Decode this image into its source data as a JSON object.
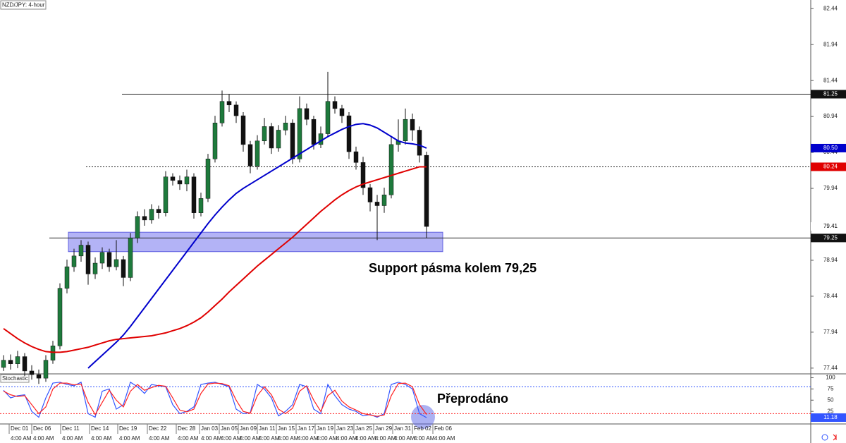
{
  "chart_data": [
    {
      "type": "candlestick",
      "title": "NZD/JPY: 4-hour",
      "open": [
        77.45,
        77.55,
        77.5,
        77.6,
        77.4,
        77.35,
        77.3,
        77.55,
        77.75,
        78.55,
        78.85,
        79.0,
        79.15,
        78.75,
        78.9,
        79.05,
        78.85,
        78.95,
        78.7,
        79.25,
        79.55,
        79.5,
        79.65,
        79.6,
        80.1,
        80.05,
        80.0,
        80.1,
        79.6,
        79.8,
        80.35,
        80.85,
        81.15,
        81.1,
        80.95,
        80.55,
        80.25,
        80.6,
        80.8,
        80.5,
        80.75,
        80.85,
        80.35,
        81.05,
        80.9,
        80.55,
        80.7,
        81.15,
        81.05,
        80.95,
        80.45,
        80.3,
        79.95,
        79.75,
        79.7,
        79.85,
        80.55,
        80.6,
        80.9,
        80.75,
        80.4
      ],
      "high": [
        77.62,
        77.63,
        77.68,
        77.65,
        77.48,
        77.42,
        77.62,
        77.82,
        78.62,
        78.95,
        79.1,
        79.22,
        79.2,
        78.98,
        79.12,
        79.1,
        79.22,
        79.0,
        79.32,
        79.62,
        79.65,
        79.72,
        79.7,
        80.18,
        80.15,
        80.12,
        80.2,
        80.15,
        79.88,
        80.42,
        80.95,
        81.3,
        81.25,
        81.15,
        81.0,
        80.6,
        80.68,
        80.92,
        80.85,
        80.82,
        80.95,
        80.9,
        81.22,
        81.12,
        80.95,
        80.8,
        81.56,
        81.22,
        81.1,
        81.0,
        80.52,
        80.38,
        80.0,
        79.85,
        79.95,
        80.65,
        80.9,
        81.05,
        80.98,
        80.8,
        80.45
      ],
      "low": [
        77.4,
        77.42,
        77.44,
        77.33,
        77.28,
        77.22,
        77.25,
        77.5,
        77.7,
        78.48,
        78.78,
        78.92,
        78.6,
        78.68,
        78.82,
        78.78,
        78.8,
        78.58,
        78.65,
        79.18,
        79.42,
        79.45,
        79.52,
        79.55,
        79.98,
        79.92,
        79.9,
        79.52,
        79.55,
        79.75,
        80.3,
        80.8,
        81.0,
        80.85,
        80.45,
        80.15,
        80.2,
        80.55,
        80.42,
        80.45,
        80.68,
        80.28,
        80.3,
        80.82,
        80.48,
        80.5,
        80.65,
        80.98,
        80.85,
        80.35,
        80.2,
        79.85,
        79.62,
        79.22,
        79.6,
        79.8,
        80.45,
        80.55,
        80.6,
        80.3,
        79.25
      ],
      "close": [
        77.55,
        77.5,
        77.6,
        77.4,
        77.35,
        77.3,
        77.55,
        77.75,
        78.55,
        78.85,
        79.0,
        79.15,
        78.75,
        78.9,
        79.05,
        78.85,
        78.95,
        78.7,
        79.25,
        79.55,
        79.5,
        79.65,
        79.6,
        80.1,
        80.05,
        80.0,
        80.1,
        79.6,
        79.8,
        80.35,
        80.85,
        81.15,
        81.1,
        80.95,
        80.55,
        80.25,
        80.6,
        80.8,
        80.5,
        80.75,
        80.85,
        80.35,
        81.05,
        80.9,
        80.55,
        80.7,
        81.15,
        81.05,
        80.95,
        80.45,
        80.3,
        79.95,
        79.75,
        79.7,
        79.85,
        80.55,
        80.6,
        80.9,
        80.75,
        80.4,
        79.41
      ],
      "up_color": "#1e7a3c",
      "down_color": "#111111",
      "series": [
        {
          "color": "#0000cc",
          "last_value_label": "80.50",
          "values": [
            null,
            null,
            null,
            null,
            null,
            null,
            null,
            null,
            null,
            null,
            null,
            null,
            77.44,
            77.53,
            77.62,
            77.71,
            77.8,
            77.9,
            78.02,
            78.15,
            78.28,
            78.41,
            78.54,
            78.67,
            78.8,
            78.93,
            79.06,
            79.19,
            79.32,
            79.45,
            79.57,
            79.68,
            79.78,
            79.87,
            79.94,
            80.0,
            80.06,
            80.12,
            80.18,
            80.24,
            80.3,
            80.36,
            80.42,
            80.48,
            80.54,
            80.6,
            80.66,
            80.71,
            80.76,
            80.8,
            80.83,
            80.84,
            80.82,
            80.78,
            80.72,
            80.66,
            80.6,
            80.57,
            80.56,
            80.54,
            80.5
          ]
        },
        {
          "color": "#e00000",
          "values": [
            77.99,
            77.92,
            77.85,
            77.79,
            77.74,
            77.7,
            77.67,
            77.66,
            77.66,
            77.67,
            77.69,
            77.71,
            77.73,
            77.76,
            77.79,
            77.82,
            77.84,
            77.85,
            77.86,
            77.87,
            77.88,
            77.89,
            77.91,
            77.93,
            77.96,
            77.99,
            78.03,
            78.08,
            78.14,
            78.22,
            78.31,
            78.4,
            78.5,
            78.59,
            78.68,
            78.77,
            78.86,
            78.94,
            79.02,
            79.1,
            79.18,
            79.26,
            79.35,
            79.44,
            79.53,
            79.62,
            79.7,
            79.78,
            79.85,
            79.91,
            79.96,
            80.0,
            80.03,
            80.06,
            80.09,
            80.12,
            80.15,
            80.18,
            80.21,
            80.24,
            80.24
          ]
        }
      ],
      "hlines": [
        {
          "value": 81.25,
          "style": "solid"
        },
        {
          "value": 80.24,
          "style": "dotted"
        },
        {
          "value": 79.25,
          "style": "solid"
        }
      ],
      "zone": {
        "from": 79.06,
        "to": 79.33,
        "color": "#8080f0"
      },
      "annotation": "Support pásma kolem 79,25",
      "ylim": [
        77.36,
        82.56
      ],
      "yticks": [
        77.44,
        77.94,
        78.44,
        78.94,
        79.94,
        80.44,
        80.94,
        81.44,
        81.94,
        82.44
      ]
    },
    {
      "type": "line",
      "title": "Stochastic",
      "series": [
        {
          "color": "#3355ff",
          "values": [
            72,
            55,
            60,
            62,
            25,
            12,
            55,
            88,
            90,
            85,
            82,
            90,
            20,
            12,
            70,
            75,
            30,
            40,
            90,
            80,
            65,
            85,
            82,
            80,
            40,
            20,
            25,
            35,
            85,
            88,
            90,
            85,
            80,
            30,
            20,
            22,
            85,
            75,
            55,
            15,
            25,
            40,
            85,
            80,
            30,
            20,
            85,
            60,
            40,
            30,
            25,
            15,
            18,
            12,
            20,
            85,
            90,
            85,
            75,
            20,
            11.18
          ]
        },
        {
          "color": "#ff2222",
          "values": [
            70,
            62,
            58,
            60,
            40,
            20,
            35,
            75,
            88,
            88,
            84,
            86,
            45,
            18,
            45,
            72,
            50,
            35,
            70,
            85,
            72,
            78,
            83,
            81,
            55,
            28,
            24,
            30,
            65,
            86,
            88,
            87,
            82,
            50,
            25,
            21,
            60,
            80,
            62,
            30,
            20,
            32,
            70,
            82,
            50,
            25,
            60,
            72,
            48,
            35,
            28,
            20,
            17,
            14,
            17,
            60,
            87,
            88,
            80,
            40,
            18
          ]
        }
      ],
      "levels": [
        {
          "value": 80,
          "color": "#3355ff"
        },
        {
          "value": 20,
          "color": "#ff2222"
        }
      ],
      "annotation": "Přeprodáno",
      "ylim": [
        -3,
        107
      ],
      "yticks": [
        25,
        50,
        75,
        100
      ],
      "xticks": [
        {
          "value": 0.8,
          "label": "Dec 01"
        },
        {
          "value": 4,
          "label": "Dec 06"
        },
        {
          "value": 8.1,
          "label": "Dec 11"
        },
        {
          "value": 12.2,
          "label": "Dec 14"
        },
        {
          "value": 16.2,
          "label": "Dec 19"
        },
        {
          "value": 20.4,
          "label": "Dec 22"
        },
        {
          "value": 24.5,
          "label": "Dec 28"
        },
        {
          "value": 27.8,
          "label": "Jan 03"
        },
        {
          "value": 30.6,
          "label": "Jan 05"
        },
        {
          "value": 33.3,
          "label": "Jan 09"
        },
        {
          "value": 36,
          "label": "Jan 11"
        },
        {
          "value": 38.7,
          "label": "Jan 15"
        },
        {
          "value": 41.5,
          "label": "Jan 17"
        },
        {
          "value": 44.2,
          "label": "Jan 19"
        },
        {
          "value": 47,
          "label": "Jan 23"
        },
        {
          "value": 49.7,
          "label": "Jan 25"
        },
        {
          "value": 52.5,
          "label": "Jan 29"
        },
        {
          "value": 55.2,
          "label": "Jan 31"
        },
        {
          "value": 58,
          "label": "Feb 02"
        },
        {
          "value": 60.9,
          "label": "Feb 06"
        }
      ],
      "xtick_times": [
        "4:00 AM",
        "4:00 AM",
        "4:00 AM",
        "4:00 AM",
        "4:00 AM",
        "4:00 AM",
        "4:00 AM",
        "4:00 AM",
        "4:00 AM",
        "4:00 AM",
        "4:00 AM",
        "4:00 AM",
        "4:00 AM",
        "4:00 AM",
        "4:00 AM",
        "4:00 AM",
        "4:00 AM",
        "4:00 AM",
        "4:00 AM",
        "4:00 AM"
      ]
    }
  ]
}
